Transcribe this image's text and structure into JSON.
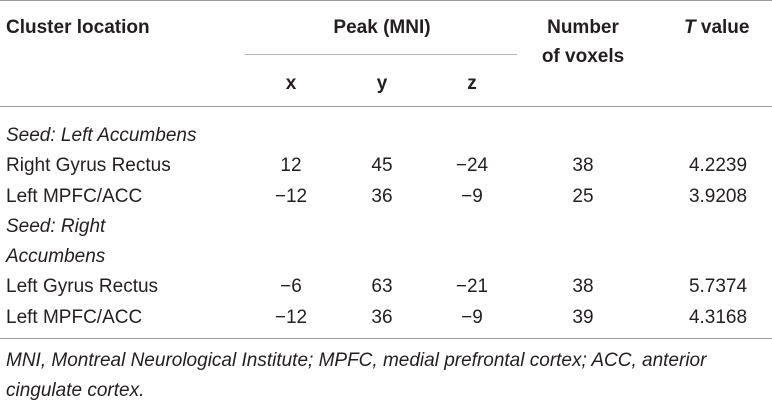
{
  "table": {
    "headers": {
      "cluster_location": "Cluster location",
      "peak": "Peak (MNI)",
      "x": "x",
      "y": "y",
      "z": "z",
      "voxels_line1": "Number",
      "voxels_line2": "of voxels",
      "t_italic": "T",
      "t_rest": " value"
    },
    "seed_left_label": "Seed: Left Accumbens",
    "seed_right_label_line1": "Seed: Right",
    "seed_right_label_line2": "Accumbens",
    "rows": [
      {
        "location": "Right Gyrus Rectus",
        "x": "12",
        "y": "45",
        "z": "−24",
        "voxels": "38",
        "t": "4.2239"
      },
      {
        "location": "Left MPFC/ACC",
        "x": "−12",
        "y": "36",
        "z": "−9",
        "voxels": "25",
        "t": "3.9208"
      },
      {
        "location": "Left Gyrus Rectus",
        "x": "−6",
        "y": "63",
        "z": "−21",
        "voxels": "38",
        "t": "5.7374"
      },
      {
        "location": "Left MPFC/ACC",
        "x": "−12",
        "y": "36",
        "z": "−9",
        "voxels": "39",
        "t": "4.3168"
      }
    ],
    "footnote": "MNI, Montreal Neurological Institute; MPFC, medial prefrontal cortex; ACC, anterior cingulate cortex."
  }
}
